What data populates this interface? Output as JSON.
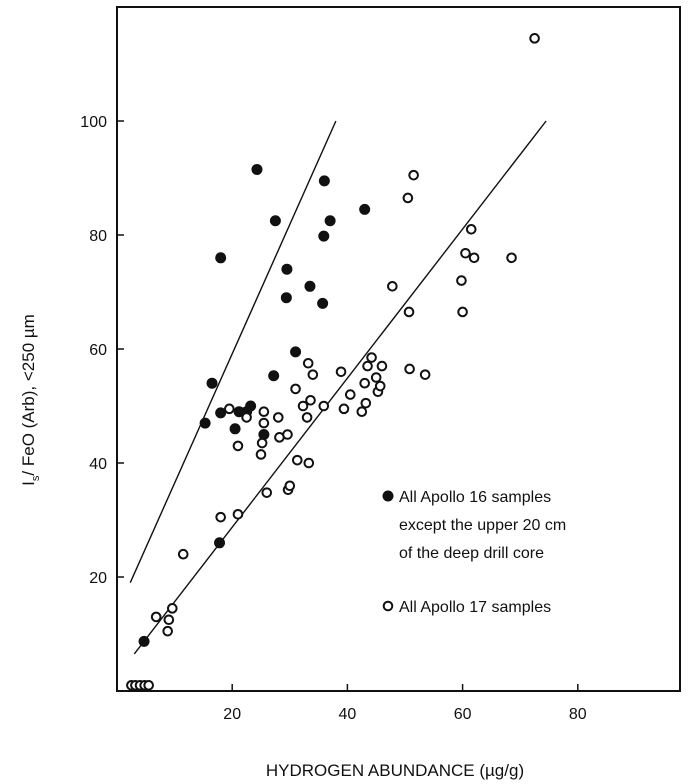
{
  "chart_data": {
    "type": "scatter",
    "xlabel": "HYDROGEN ABUNDANCE (µg/g)",
    "ylabel": "I",
    "ylabel_sub": "s",
    "ylabel_rest": "/ FeO (Arb), <250 µm",
    "xlim": [
      0,
      100
    ],
    "ylim": [
      0,
      118
    ],
    "x_ticks": [
      20,
      40,
      60,
      80
    ],
    "y_ticks": [
      20,
      40,
      60,
      80,
      100
    ],
    "grid": false,
    "legend_position": "lower-right",
    "legend": [
      {
        "marker": "filled-circle",
        "lines": [
          "All Apollo 16 samples",
          "except the upper 20 cm",
          "of the deep drill core"
        ]
      },
      {
        "marker": "open-circle",
        "lines": [
          "All Apollo 17 samples"
        ]
      }
    ],
    "series": [
      {
        "marker": "filled-circle",
        "points": [
          [
            4.7,
            8.7
          ],
          [
            17.8,
            26.0
          ],
          [
            15.3,
            47.0
          ],
          [
            16.5,
            54.0
          ],
          [
            18.0,
            48.8
          ],
          [
            18.0,
            76.0
          ],
          [
            20.5,
            46.0
          ],
          [
            21.2,
            49.0
          ],
          [
            22.5,
            49.0
          ],
          [
            23.2,
            50.0
          ],
          [
            24.3,
            91.5
          ],
          [
            25.5,
            45.0
          ],
          [
            27.2,
            55.3
          ],
          [
            27.5,
            82.5
          ],
          [
            29.4,
            69.0
          ],
          [
            29.5,
            74.0
          ],
          [
            31.0,
            59.5
          ],
          [
            33.5,
            71.0
          ],
          [
            35.7,
            68.0
          ],
          [
            35.9,
            79.8
          ],
          [
            36.0,
            89.5
          ],
          [
            37.0,
            82.5
          ],
          [
            43.0,
            84.5
          ]
        ]
      },
      {
        "marker": "open-circle",
        "points": [
          [
            2.5,
            1.0
          ],
          [
            3.2,
            1.0
          ],
          [
            4.0,
            1.0
          ],
          [
            4.8,
            1.0
          ],
          [
            5.5,
            1.0
          ],
          [
            6.8,
            13.0
          ],
          [
            8.8,
            10.5
          ],
          [
            9.0,
            12.5
          ],
          [
            9.6,
            14.5
          ],
          [
            11.5,
            24.0
          ],
          [
            18.0,
            30.5
          ],
          [
            19.5,
            49.5
          ],
          [
            21.0,
            31.0
          ],
          [
            21.0,
            43.0
          ],
          [
            22.5,
            48.0
          ],
          [
            25.0,
            41.5
          ],
          [
            25.2,
            43.5
          ],
          [
            25.5,
            49.0
          ],
          [
            25.5,
            47.0
          ],
          [
            26.0,
            34.8
          ],
          [
            28.0,
            48.0
          ],
          [
            28.2,
            44.5
          ],
          [
            29.6,
            45.0
          ],
          [
            29.7,
            35.3
          ],
          [
            30.0,
            36.0
          ],
          [
            31.0,
            53.0
          ],
          [
            31.3,
            40.5
          ],
          [
            32.3,
            50.0
          ],
          [
            33.0,
            48.0
          ],
          [
            33.2,
            57.5
          ],
          [
            33.3,
            40.0
          ],
          [
            33.6,
            51.0
          ],
          [
            34.0,
            55.5
          ],
          [
            35.9,
            50.0
          ],
          [
            38.9,
            56.0
          ],
          [
            39.4,
            49.5
          ],
          [
            40.5,
            52.0
          ],
          [
            42.5,
            49.0
          ],
          [
            43.0,
            54.0
          ],
          [
            43.2,
            50.5
          ],
          [
            43.5,
            57.0
          ],
          [
            44.2,
            58.5
          ],
          [
            45.0,
            55.0
          ],
          [
            45.3,
            52.5
          ],
          [
            45.7,
            53.5
          ],
          [
            46.0,
            57.0
          ],
          [
            47.8,
            71.0
          ],
          [
            50.5,
            86.5
          ],
          [
            50.7,
            66.5
          ],
          [
            50.8,
            56.5
          ],
          [
            51.5,
            90.5
          ],
          [
            53.5,
            55.5
          ],
          [
            59.8,
            72.0
          ],
          [
            60.0,
            66.5
          ],
          [
            60.5,
            76.8
          ],
          [
            61.5,
            81.0
          ],
          [
            62.0,
            76.0
          ],
          [
            68.5,
            76.0
          ],
          [
            72.5,
            114.5
          ]
        ]
      }
    ],
    "lines": [
      {
        "from": [
          2.3,
          19.0
        ],
        "to": [
          38.0,
          100.0
        ]
      },
      {
        "from": [
          3.0,
          6.5
        ],
        "to": [
          74.5,
          100.0
        ]
      }
    ]
  }
}
